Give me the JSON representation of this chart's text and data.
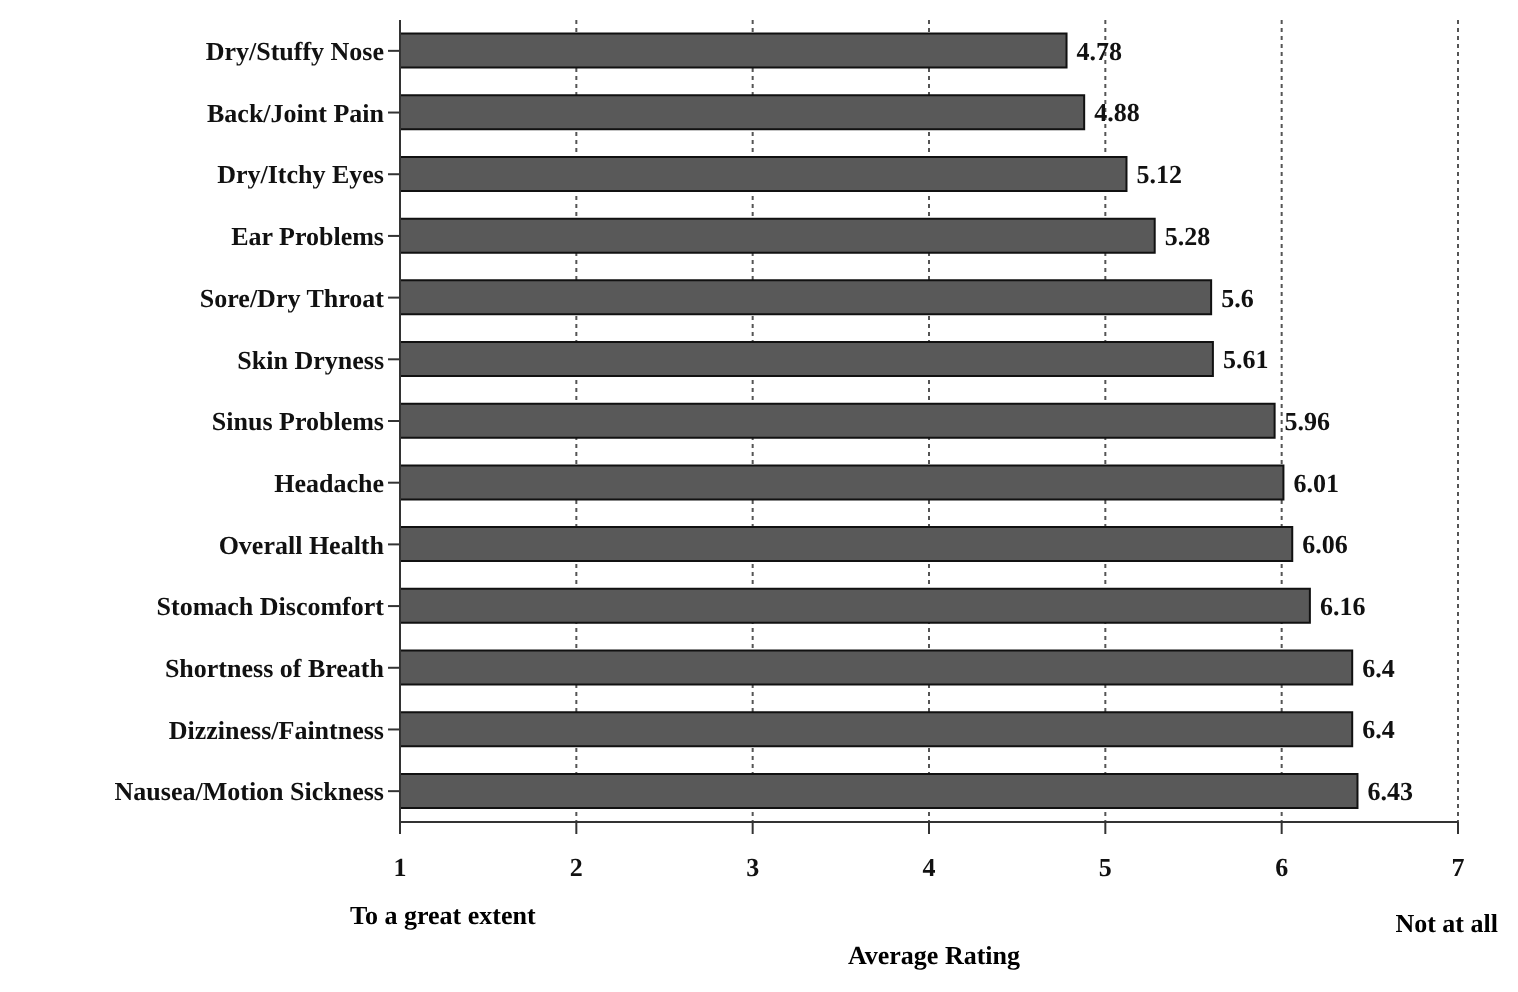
{
  "chart_data": {
    "type": "bar",
    "orientation": "horizontal",
    "xlabel": "Average Rating",
    "categories": [
      "Dry/Stuffy Nose",
      "Back/Joint Pain",
      "Dry/Itchy Eyes",
      "Ear Problems",
      "Sore/Dry Throat",
      "Skin Dryness",
      "Sinus Problems",
      "Headache",
      "Overall Health",
      "Stomach Discomfort",
      "Shortness of Breath",
      "Dizziness/Faintness",
      "Nausea/Motion Sickness"
    ],
    "values": [
      4.78,
      4.88,
      5.12,
      5.28,
      5.6,
      5.61,
      5.96,
      6.01,
      6.06,
      6.16,
      6.4,
      6.4,
      6.43
    ],
    "color": "#595959",
    "xlim": [
      1,
      7
    ],
    "xticks": [
      1,
      2,
      3,
      4,
      5,
      6,
      7
    ],
    "grid": "x",
    "data_labels": true,
    "annotations": [
      "To a great extent",
      "Not at all"
    ]
  }
}
